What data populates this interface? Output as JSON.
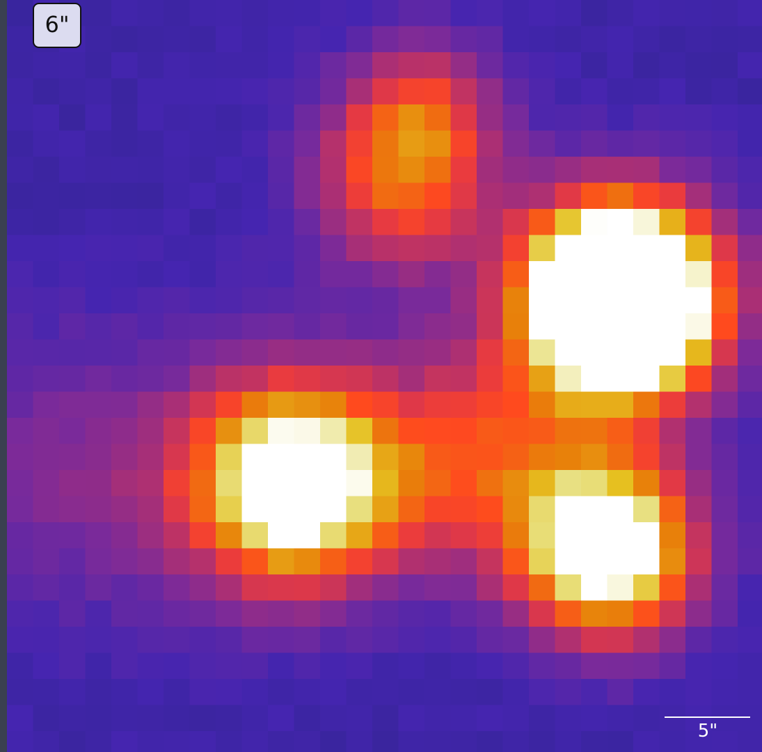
{
  "label": "6\"",
  "scale_bar": {
    "label": "5\""
  }
}
